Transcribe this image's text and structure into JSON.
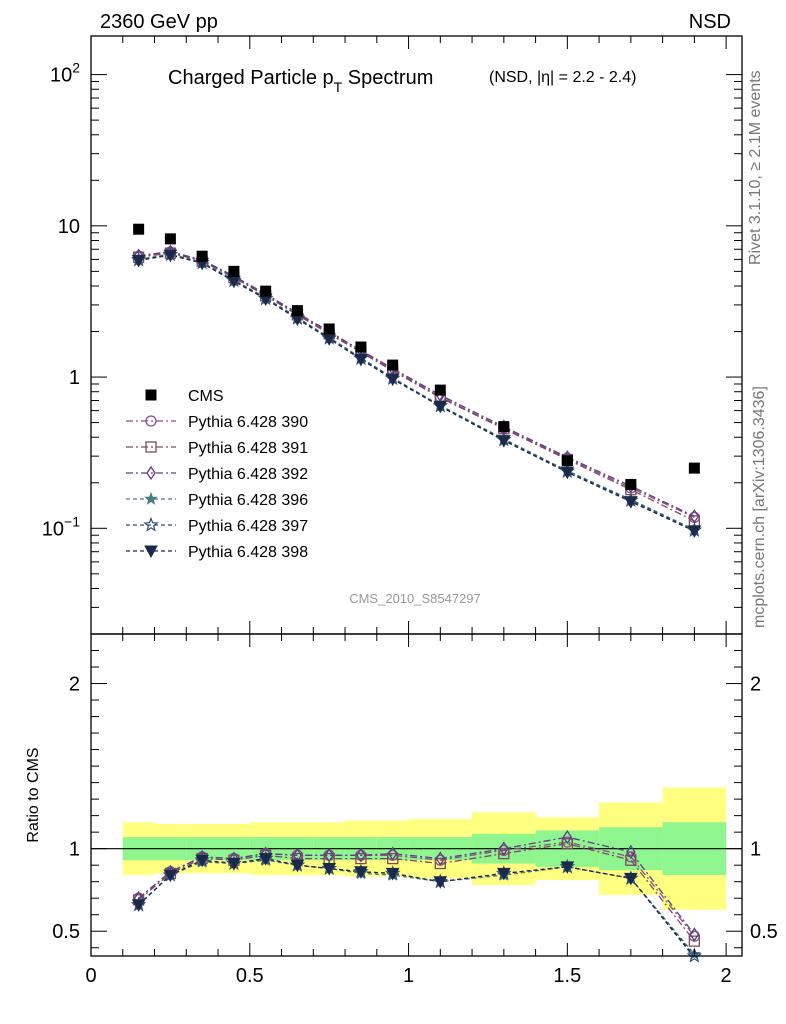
{
  "header": {
    "left": "2360 GeV pp",
    "right": "NSD"
  },
  "title": {
    "main_pre": "Charged Particle p",
    "main_sub": "T",
    "main_post": " Spectrum",
    "small": "(NSD, |η| = 2.2 - 2.4)"
  },
  "side_labels": {
    "rivet": "Rivet 3.1.10, ≥ 2.1M events",
    "mcplots": "mcplots.cern.ch [arXiv:1306.3436]"
  },
  "watermark": "CMS_2010_S8547297",
  "chart_data": {
    "type": "scatter",
    "x": [
      0.15,
      0.25,
      0.35,
      0.45,
      0.55,
      0.65,
      0.75,
      0.85,
      0.95,
      1.1,
      1.3,
      1.5,
      1.7,
      1.9
    ],
    "main": {
      "xlim": [
        0,
        2.05
      ],
      "ylim": [
        0.02,
        180
      ],
      "log_y": true,
      "y_tick_labels": [
        "10^-1",
        "1",
        "10",
        "10^2"
      ],
      "x_tick_labels": [
        "0",
        "0.5",
        "1",
        "1.5",
        "2"
      ],
      "data_series": {
        "name": "CMS",
        "color": "#000000",
        "values": [
          9.5,
          8.2,
          6.3,
          5.0,
          3.7,
          2.75,
          2.08,
          1.58,
          1.2,
          0.82,
          0.47,
          0.28,
          0.195,
          0.25
        ]
      },
      "mc_series": [
        {
          "name": "Pythia 6.428 390",
          "color": "#8b4f82",
          "marker": "circle",
          "dash": "7,3,2,3",
          "values": [
            6.3,
            6.7,
            5.9,
            4.6,
            3.5,
            2.62,
            1.97,
            1.49,
            1.12,
            0.74,
            0.46,
            0.29,
            0.185,
            0.118
          ]
        },
        {
          "name": "Pythia 6.428 391",
          "color": "#7d4a5c",
          "marker": "square",
          "dash": "7,3,2,3",
          "values": [
            6.2,
            6.6,
            5.85,
            4.55,
            3.45,
            2.58,
            1.93,
            1.46,
            1.1,
            0.73,
            0.455,
            0.285,
            0.18,
            0.112
          ]
        },
        {
          "name": "Pythia 6.428 392",
          "color": "#5c3d8a",
          "marker": "diamond",
          "dash": "7,3,2,3",
          "values": [
            6.35,
            6.75,
            5.95,
            4.65,
            3.55,
            2.65,
            2.0,
            1.5,
            1.14,
            0.76,
            0.47,
            0.295,
            0.19,
            0.12
          ]
        },
        {
          "name": "Pythia 6.428 396",
          "color": "#4a7a82",
          "marker": "star",
          "dash": "4,3",
          "values": [
            6.0,
            6.5,
            5.75,
            4.4,
            3.35,
            2.48,
            1.83,
            1.34,
            0.99,
            0.65,
            0.39,
            0.24,
            0.155,
            0.098
          ]
        },
        {
          "name": "Pythia 6.428 397",
          "color": "#2f4f7a",
          "marker": "star-open",
          "dash": "4,3",
          "values": [
            5.95,
            6.45,
            5.7,
            4.35,
            3.3,
            2.45,
            1.81,
            1.33,
            0.98,
            0.645,
            0.385,
            0.238,
            0.153,
            0.097
          ]
        },
        {
          "name": "Pythia 6.428 398",
          "color": "#1c2a4a",
          "marker": "triangle-down",
          "dash": "4,3",
          "values": [
            5.9,
            6.4,
            5.65,
            4.3,
            3.28,
            2.42,
            1.79,
            1.31,
            0.97,
            0.64,
            0.38,
            0.235,
            0.15,
            0.096
          ]
        }
      ]
    },
    "ratio": {
      "ylabel": "Ratio to CMS",
      "ylim": [
        0.35,
        2.3
      ],
      "y_tick_labels": [
        "0.5",
        "1",
        "2"
      ],
      "reference_line": 1,
      "bands": {
        "x_edges": [
          0.1,
          0.2,
          0.3,
          0.4,
          0.5,
          0.6,
          0.7,
          0.8,
          0.9,
          1.0,
          1.2,
          1.4,
          1.6,
          1.8,
          2.0
        ],
        "stat": {
          "color": "#8ff58f",
          "lo": [
            0.93,
            0.93,
            0.93,
            0.93,
            0.93,
            0.93,
            0.93,
            0.93,
            0.93,
            0.93,
            0.91,
            0.89,
            0.87,
            0.84
          ],
          "hi": [
            1.07,
            1.07,
            1.07,
            1.07,
            1.07,
            1.07,
            1.07,
            1.07,
            1.07,
            1.07,
            1.09,
            1.11,
            1.13,
            1.16
          ]
        },
        "syst": {
          "color": "#ffff80",
          "lo": [
            0.84,
            0.85,
            0.85,
            0.85,
            0.84,
            0.84,
            0.84,
            0.83,
            0.83,
            0.82,
            0.78,
            0.81,
            0.72,
            0.63
          ],
          "hi": [
            1.16,
            1.15,
            1.15,
            1.15,
            1.16,
            1.16,
            1.16,
            1.17,
            1.17,
            1.18,
            1.22,
            1.19,
            1.28,
            1.37
          ]
        }
      },
      "mc_ratios": [
        [
          0.7,
          0.86,
          0.95,
          0.94,
          0.97,
          0.96,
          0.96,
          0.96,
          0.96,
          0.93,
          0.99,
          1.04,
          0.95,
          0.47
        ],
        [
          0.69,
          0.85,
          0.94,
          0.93,
          0.96,
          0.94,
          0.94,
          0.94,
          0.94,
          0.91,
          0.97,
          1.03,
          0.93,
          0.44
        ],
        [
          0.7,
          0.86,
          0.95,
          0.94,
          0.97,
          0.96,
          0.96,
          0.96,
          0.97,
          0.94,
          1.0,
          1.07,
          0.98,
          0.48
        ],
        [
          0.66,
          0.84,
          0.92,
          0.91,
          0.93,
          0.9,
          0.88,
          0.85,
          0.84,
          0.8,
          0.84,
          0.89,
          0.82,
          0.36
        ],
        [
          0.66,
          0.84,
          0.93,
          0.91,
          0.94,
          0.9,
          0.88,
          0.86,
          0.85,
          0.8,
          0.85,
          0.89,
          0.82,
          0.35
        ],
        [
          0.66,
          0.84,
          0.93,
          0.91,
          0.94,
          0.9,
          0.88,
          0.86,
          0.85,
          0.8,
          0.85,
          0.89,
          0.82,
          0.34
        ]
      ]
    }
  }
}
